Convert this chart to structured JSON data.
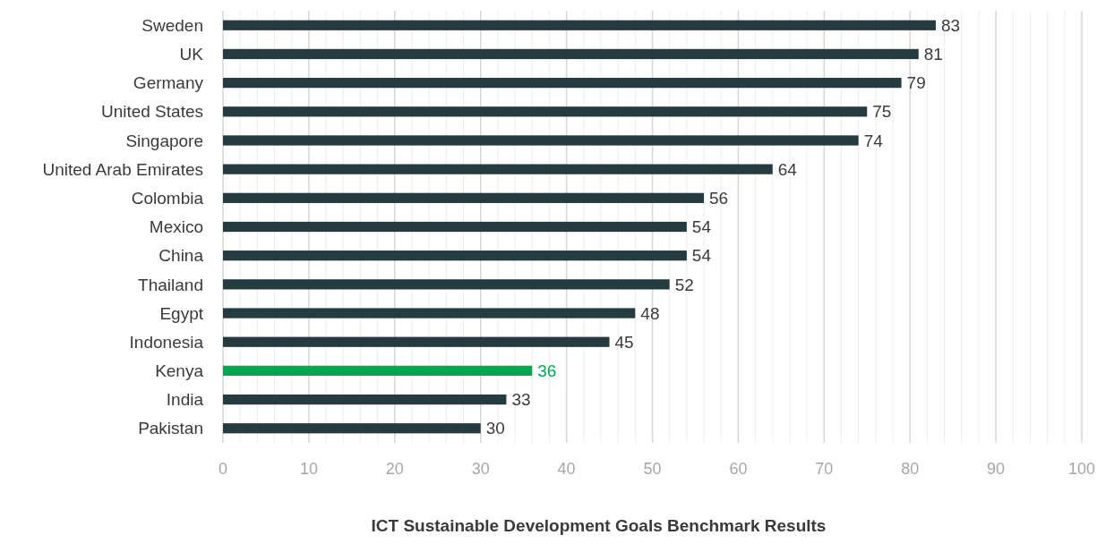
{
  "chart_data": {
    "type": "bar",
    "orientation": "horizontal",
    "title": "ICT Sustainable Development Goals Benchmark Results",
    "categories": [
      "Sweden",
      "UK",
      "Germany",
      "United States",
      "Singapore",
      "United Arab Emirates",
      "Colombia",
      "Mexico",
      "China",
      "Thailand",
      "Egypt",
      "Indonesia",
      "Kenya",
      "India",
      "Pakistan"
    ],
    "values": [
      83,
      81,
      79,
      75,
      74,
      64,
      56,
      54,
      54,
      52,
      48,
      45,
      36,
      33,
      30
    ],
    "colors": [
      "#263b3f",
      "#263b3f",
      "#263b3f",
      "#263b3f",
      "#263b3f",
      "#263b3f",
      "#263b3f",
      "#263b3f",
      "#263b3f",
      "#263b3f",
      "#263b3f",
      "#263b3f",
      "#00a651",
      "#263b3f",
      "#263b3f"
    ],
    "xlim": [
      0,
      100
    ],
    "xticks": [
      0,
      {
        "value": 2,
        "label": null
      },
      {
        "value": 4,
        "label": null
      },
      {
        "value": 6,
        "label": null
      },
      {
        "value": 8,
        "label": null
      },
      10,
      {
        "value": 12,
        "label": null
      },
      {
        "value": 14,
        "label": null
      },
      {
        "value": 16,
        "label": null
      },
      {
        "value": 18,
        "label": null
      },
      20,
      {
        "value": 22,
        "label": null
      },
      {
        "value": 24,
        "label": null
      },
      {
        "value": 26,
        "label": null
      },
      {
        "value": 28,
        "label": null
      },
      30,
      {
        "value": 32,
        "label": null
      },
      {
        "value": 34,
        "label": null
      },
      {
        "value": 36,
        "label": null
      },
      {
        "value": 38,
        "label": null
      },
      40,
      {
        "value": 42,
        "label": null
      },
      {
        "value": 44,
        "label": null
      },
      {
        "value": 46,
        "label": null
      },
      {
        "value": 48,
        "label": null
      },
      50,
      {
        "value": 52,
        "label": null
      },
      {
        "value": 54,
        "label": null
      },
      {
        "value": 56,
        "label": null
      },
      {
        "value": 58,
        "label": null
      },
      60,
      {
        "value": 62,
        "label": null
      },
      {
        "value": 64,
        "label": null
      },
      {
        "value": 66,
        "label": null
      },
      {
        "value": 68,
        "label": null
      },
      70,
      {
        "value": 72,
        "label": null
      },
      {
        "value": 74,
        "label": null
      },
      {
        "value": 76,
        "label": null
      },
      {
        "value": 78,
        "label": null
      },
      80,
      {
        "value": 82,
        "label": null
      },
      {
        "value": 84,
        "label": null
      },
      {
        "value": 86,
        "label": null
      },
      {
        "value": 88,
        "label": null
      },
      90,
      {
        "value": 92,
        "label": null
      },
      {
        "value": 94,
        "label": null
      },
      {
        "value": 96,
        "label": null
      },
      {
        "value": 98,
        "label": null
      },
      100
    ],
    "grid": "x",
    "data_labels": true
  }
}
